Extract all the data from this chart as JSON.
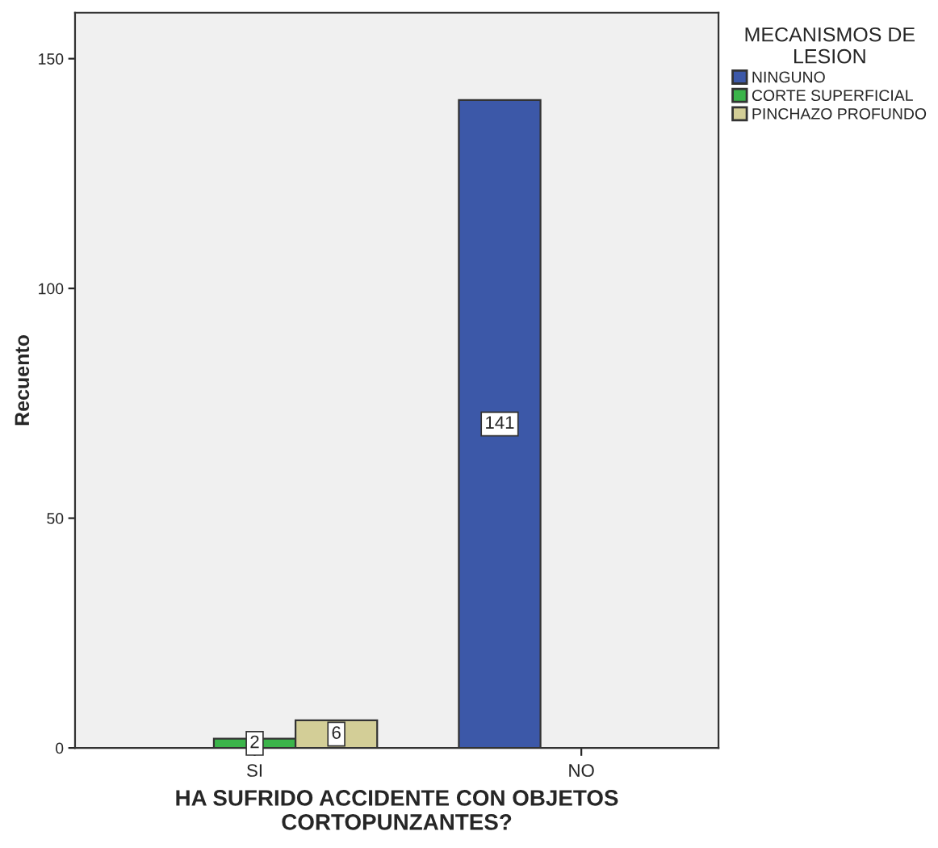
{
  "chart_data": {
    "type": "bar",
    "xlabel": "HA SUFRIDO ACCIDENTE CON OBJETOS\nCORTOPUNZANTES?",
    "ylabel": "Recuento",
    "legend_title": "MECANISMOS DE\nLESION",
    "categories": [
      "SI",
      "NO"
    ],
    "series": [
      {
        "name": "NINGUNO",
        "color": "#3c58a8",
        "values": [
          null,
          141
        ]
      },
      {
        "name": "CORTE SUPERFICIAL",
        "color": "#3bb44a",
        "values": [
          2,
          null
        ]
      },
      {
        "name": "PINCHAZO PROFUNDO",
        "color": "#d3ce97",
        "values": [
          6,
          null
        ]
      }
    ],
    "ylim": [
      0,
      160
    ],
    "yticks": [
      0,
      50,
      100,
      150
    ],
    "grid": false,
    "legend": "top right",
    "data_labels": true
  }
}
